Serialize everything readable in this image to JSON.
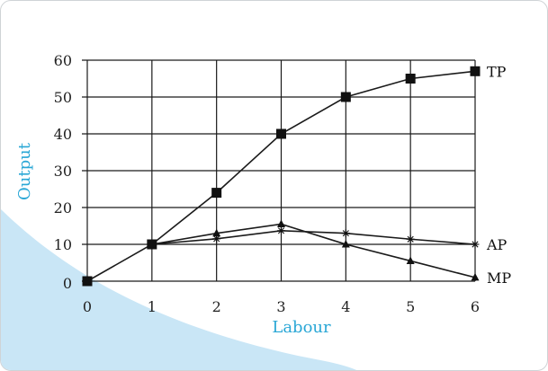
{
  "chart_data": {
    "type": "line",
    "xlabel": "Labour",
    "ylabel": "Output",
    "xlim": [
      0,
      6
    ],
    "ylim": [
      0,
      60
    ],
    "x_ticks": [
      "0",
      "1",
      "2",
      "3",
      "4",
      "5",
      "6"
    ],
    "y_ticks": [
      "0",
      "10",
      "20",
      "30",
      "40",
      "50",
      "60"
    ],
    "grid": true,
    "series": [
      {
        "name": "TP",
        "marker": "square",
        "x": [
          0,
          1,
          2,
          3,
          4,
          5,
          6
        ],
        "y": [
          0,
          10,
          24,
          40,
          50,
          55,
          57
        ]
      },
      {
        "name": "AP",
        "marker": "asterisk",
        "x": [
          1,
          2,
          3,
          4,
          5,
          6
        ],
        "y": [
          10,
          11.5,
          13.7,
          13,
          11.4,
          10
        ]
      },
      {
        "name": "MP",
        "marker": "triangle",
        "x": [
          1,
          2,
          3,
          4,
          5,
          6
        ],
        "y": [
          10,
          13,
          15.5,
          10,
          5.5,
          1
        ]
      }
    ],
    "colors": {
      "axis_label": "#2aa7d6",
      "line": "#1a1a1a",
      "swoosh": "#c9e6f6"
    }
  }
}
